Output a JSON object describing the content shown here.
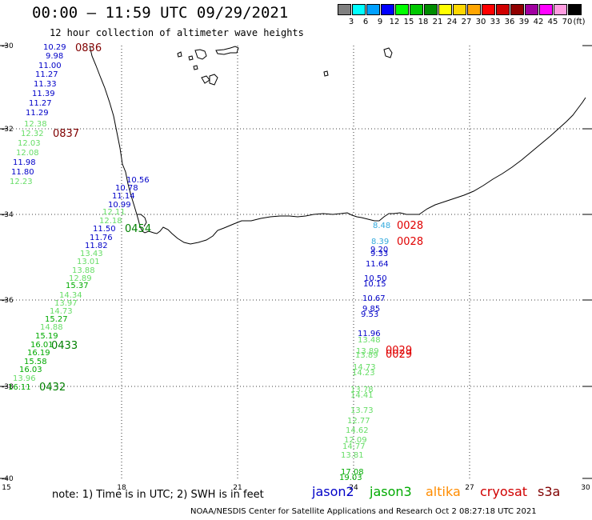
{
  "header": {
    "title": "00:00 – 11:59 UTC 09/29/2021",
    "subtitle": "12 hour collection of altimeter wave heights"
  },
  "legend": {
    "unit_label": "(ft)",
    "swatches": [
      {
        "color": "#808080",
        "label": "3"
      },
      {
        "color": "#00ffff",
        "label": "6"
      },
      {
        "color": "#00a0ff",
        "label": "9"
      },
      {
        "color": "#0000ff",
        "label": "12"
      },
      {
        "color": "#00ff00",
        "label": "15"
      },
      {
        "color": "#00c800",
        "label": "18"
      },
      {
        "color": "#008c00",
        "label": "21"
      },
      {
        "color": "#ffff00",
        "label": "24"
      },
      {
        "color": "#ffd700",
        "label": "27"
      },
      {
        "color": "#ffa500",
        "label": "30"
      },
      {
        "color": "#ff0000",
        "label": "33"
      },
      {
        "color": "#d00000",
        "label": "36"
      },
      {
        "color": "#900000",
        "label": "39"
      },
      {
        "color": "#a000a0",
        "label": "42"
      },
      {
        "color": "#ff00ff",
        "label": "45"
      },
      {
        "color": "#ff9ce0",
        "label": "70"
      },
      {
        "color": "#000000",
        "label": ""
      }
    ]
  },
  "axes": {
    "lat_labels": [
      "-30",
      "-32",
      "-34",
      "-36",
      "-38",
      "-40"
    ],
    "lon_labels": [
      "15",
      "18",
      "21",
      "24",
      "27",
      "30"
    ]
  },
  "colors": {
    "jason2": "#0000c8",
    "jason3": "#00aa00",
    "altika": "#ff8c00",
    "cryosat": "#d00000",
    "s3a": "#800000",
    "jason3_light": "#66dd66",
    "altika_light": "#33aadd",
    "time_s3a": "#800000",
    "time_j3": "#008000",
    "time_cryo": "#e00000"
  },
  "labels_west": [
    {
      "text": "10.29",
      "c": "jason2"
    },
    {
      "text": "9.98",
      "c": "jason2"
    },
    {
      "text": "11.00",
      "c": "jason2"
    },
    {
      "text": "11.27",
      "c": "jason2"
    },
    {
      "text": "11.33",
      "c": "jason2"
    },
    {
      "text": "11.39",
      "c": "jason2"
    },
    {
      "text": "11.27",
      "c": "jason2"
    },
    {
      "text": "11.29",
      "c": "jason2"
    },
    {
      "text": "12.38",
      "c": "jason3_light"
    },
    {
      "text": "12.32",
      "c": "jason3_light"
    },
    {
      "text": "12.03",
      "c": "jason3_light"
    },
    {
      "text": "12.08",
      "c": "jason3_light"
    },
    {
      "text": "11.98",
      "c": "jason2"
    },
    {
      "text": "11.80",
      "c": "jason2"
    },
    {
      "text": "12.23",
      "c": "jason3_light"
    },
    {
      "text": "10.56",
      "c": "jason2"
    },
    {
      "text": "10.78",
      "c": "jason2"
    },
    {
      "text": "11.14",
      "c": "jason2"
    },
    {
      "text": "10.99",
      "c": "jason2"
    },
    {
      "text": "12.11",
      "c": "jason3_light"
    },
    {
      "text": "12.18",
      "c": "jason3_light"
    },
    {
      "text": "11.50",
      "c": "jason2"
    },
    {
      "text": "11.76",
      "c": "jason2"
    },
    {
      "text": "11.82",
      "c": "jason2"
    },
    {
      "text": "13.43",
      "c": "jason3_light"
    },
    {
      "text": "13.01",
      "c": "jason3_light"
    },
    {
      "text": "13.88",
      "c": "jason3_light"
    },
    {
      "text": "12.89",
      "c": "jason3_light"
    },
    {
      "text": "15.37",
      "c": "jason3"
    },
    {
      "text": "14.34",
      "c": "jason3_light"
    },
    {
      "text": "13.97",
      "c": "jason3_light"
    },
    {
      "text": "14.73",
      "c": "jason3_light"
    },
    {
      "text": "15.27",
      "c": "jason3"
    },
    {
      "text": "14.88",
      "c": "jason3_light"
    },
    {
      "text": "15.19",
      "c": "jason3"
    },
    {
      "text": "16.01",
      "c": "jason3"
    },
    {
      "text": "16.19",
      "c": "jason3"
    },
    {
      "text": "15.58",
      "c": "jason3"
    },
    {
      "text": "16.03",
      "c": "jason3"
    },
    {
      "text": "13.96",
      "c": "jason3_light"
    },
    {
      "text": "16.11",
      "c": "jason3"
    }
  ],
  "labels_east": [
    {
      "text": "8.48",
      "c": "altika_light"
    },
    {
      "text": "8.39",
      "c": "altika_light"
    },
    {
      "text": "9.20",
      "c": "jason2"
    },
    {
      "text": "9.33",
      "c": "jason2"
    },
    {
      "text": "11.64",
      "c": "jason2"
    },
    {
      "text": "10.50",
      "c": "jason2"
    },
    {
      "text": "10.15",
      "c": "jason2"
    },
    {
      "text": "10.67",
      "c": "jason2"
    },
    {
      "text": "9.85",
      "c": "jason2"
    },
    {
      "text": "9.53",
      "c": "jason2"
    },
    {
      "text": "11.96",
      "c": "jason2"
    },
    {
      "text": "13.48",
      "c": "jason3_light"
    },
    {
      "text": "13.89",
      "c": "jason3_light"
    },
    {
      "text": "13.89",
      "c": "jason3_light"
    },
    {
      "text": "14.73",
      "c": "jason3_light"
    },
    {
      "text": "14.23",
      "c": "jason3_light"
    },
    {
      "text": "13.78",
      "c": "jason3_light"
    },
    {
      "text": "14.41",
      "c": "jason3_light"
    },
    {
      "text": "13.73",
      "c": "jason3_light"
    },
    {
      "text": "12.77",
      "c": "jason3_light"
    },
    {
      "text": "14.62",
      "c": "jason3_light"
    },
    {
      "text": "12.09",
      "c": "jason3_light"
    },
    {
      "text": "14.77",
      "c": "jason3_light"
    },
    {
      "text": "13.81",
      "c": "jason3_light"
    },
    {
      "text": "17.08",
      "c": "jason3"
    },
    {
      "text": "19.03",
      "c": "jason3"
    }
  ],
  "time_tags": [
    {
      "text": "0836",
      "c": "time_s3a"
    },
    {
      "text": "0837",
      "c": "time_s3a"
    },
    {
      "text": "0454",
      "c": "time_j3"
    },
    {
      "text": "0433",
      "c": "time_j3"
    },
    {
      "text": "0432",
      "c": "time_j3"
    },
    {
      "text": "0028",
      "c": "time_cryo"
    },
    {
      "text": "0028",
      "c": "time_cryo"
    },
    {
      "text": "0029",
      "c": "time_cryo"
    },
    {
      "text": "0029",
      "c": "time_cryo"
    }
  ],
  "footer": {
    "note": "note: 1) Time is in UTC; 2) SWH is in feet",
    "satellites": [
      {
        "name": "jason2",
        "c": "jason2"
      },
      {
        "name": "jason3",
        "c": "jason3"
      },
      {
        "name": "altika",
        "c": "altika"
      },
      {
        "name": "cryosat",
        "c": "cryosat"
      },
      {
        "name": "s3a",
        "c": "s3a"
      }
    ],
    "credit": "NOAA/NESDIS Center for Satellite Applications and Research    Oct  2 08:27:18 UTC 2021"
  }
}
